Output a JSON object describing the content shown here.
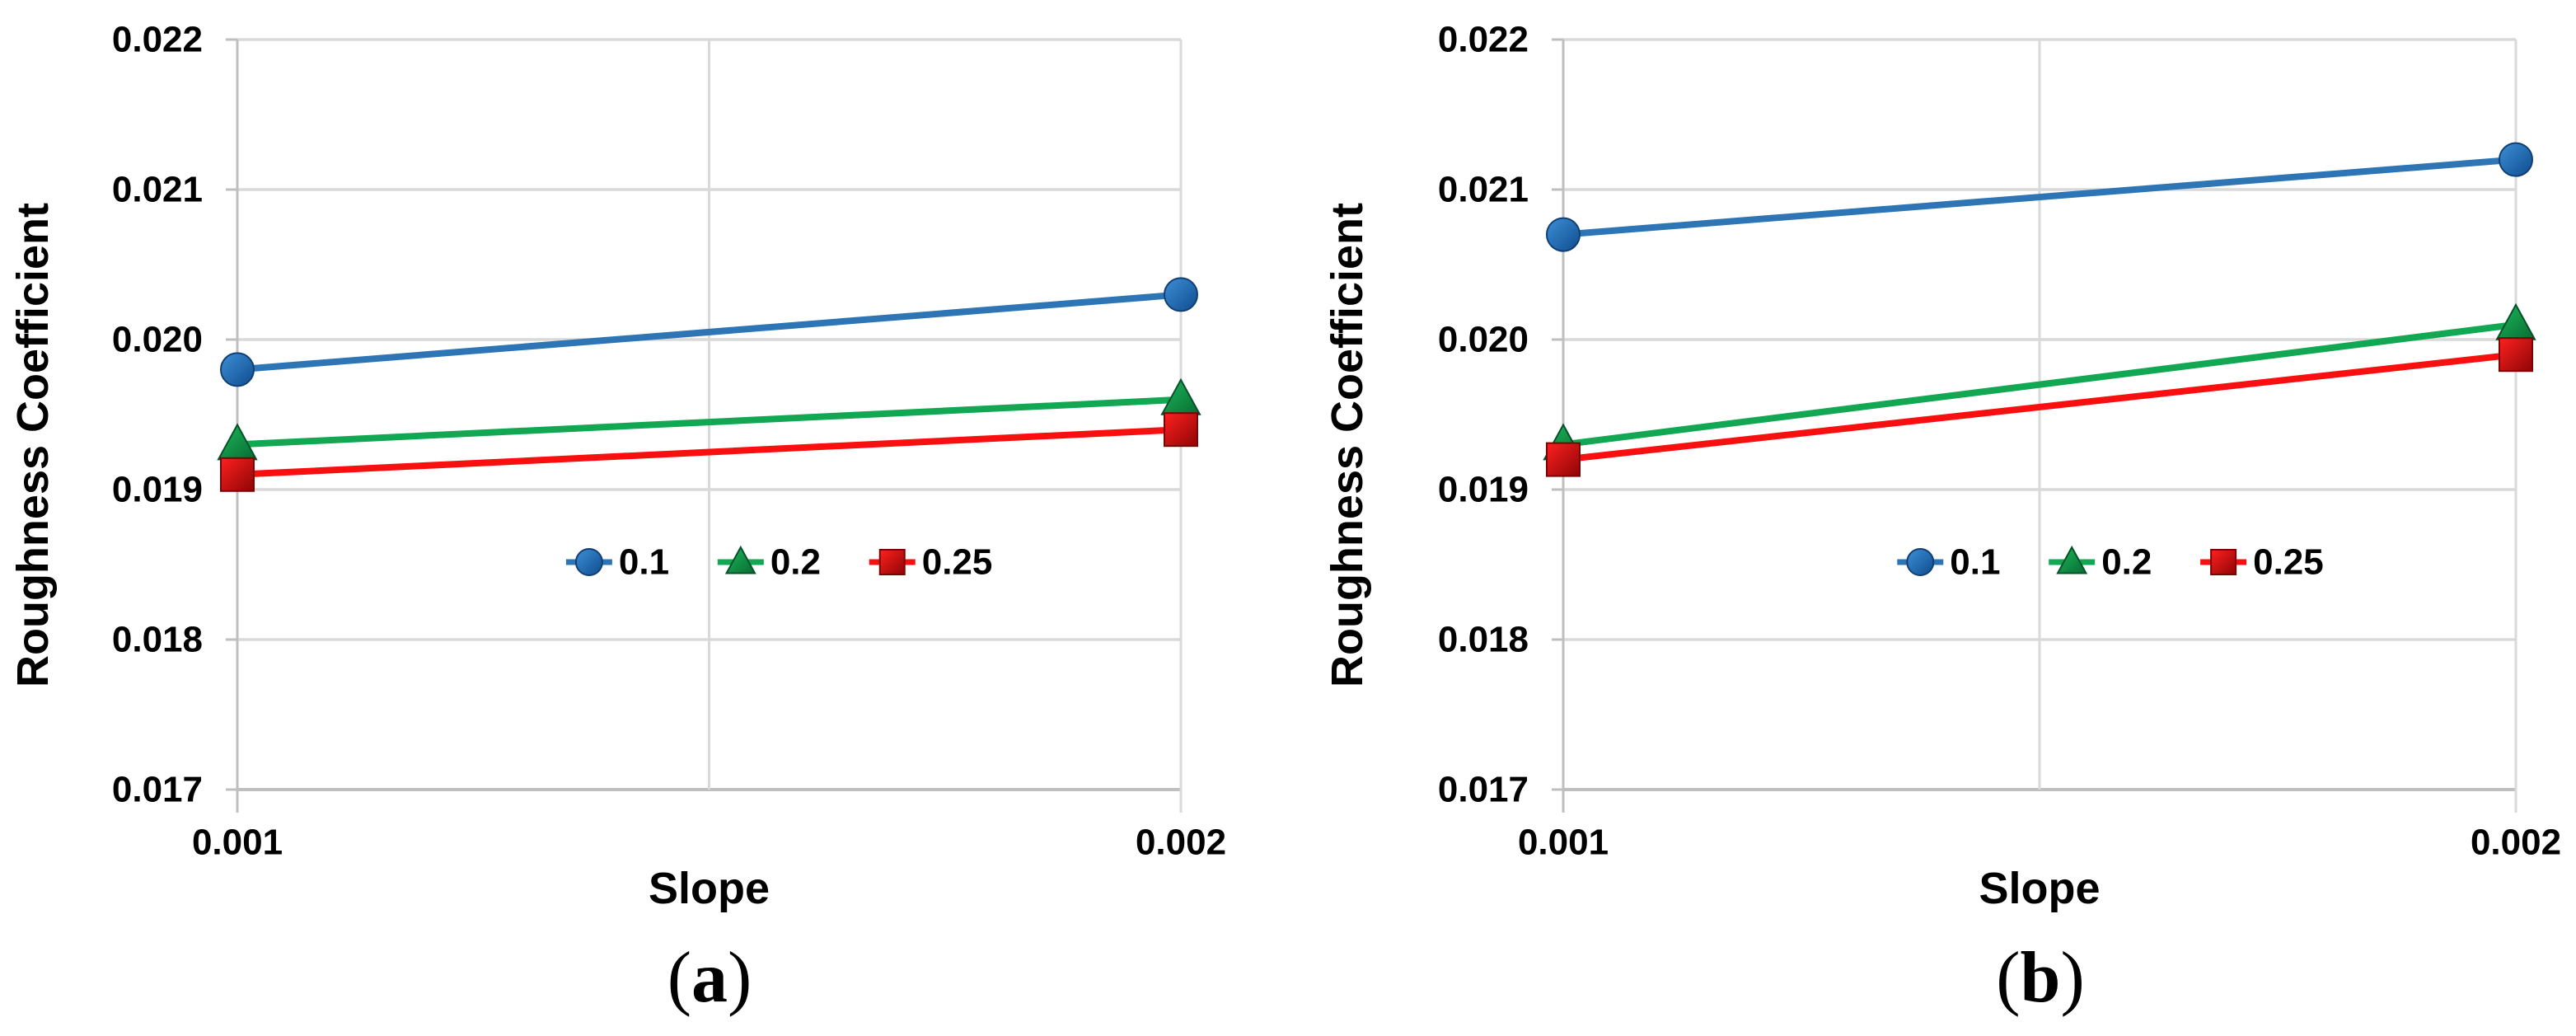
{
  "figure": {
    "background": "#FFFFFF",
    "grid_color": "#D9D9D9",
    "axis_color": "#BFBFBF",
    "text_color": "#000000"
  },
  "chart_data": [
    {
      "type": "line",
      "caption_prefix": "(",
      "caption_letter": "a",
      "caption_suffix": ")",
      "xlabel": "Slope",
      "ylabel": "Roughness Coefficient",
      "x": [
        0.001,
        0.002
      ],
      "xtick_labels": [
        "0.001",
        "0.002"
      ],
      "ytick_labels": [
        "0.017",
        "0.018",
        "0.019",
        "0.020",
        "0.021",
        "0.022"
      ],
      "ylim": [
        0.017,
        0.022
      ],
      "grid": true,
      "legend_position": "inside-lower-center",
      "series": [
        {
          "name": "0.1",
          "marker": "circle",
          "color": "#2E75B6",
          "values": [
            0.0198,
            0.0203
          ]
        },
        {
          "name": "0.2",
          "marker": "triangle",
          "color": "#12A853",
          "values": [
            0.0193,
            0.0196
          ]
        },
        {
          "name": "0.25",
          "marker": "square",
          "color": "#F80F0F",
          "values": [
            0.0191,
            0.0194
          ]
        }
      ]
    },
    {
      "type": "line",
      "caption_prefix": "(",
      "caption_letter": "b",
      "caption_suffix": ")",
      "xlabel": "Slope",
      "ylabel": "Roughness Coefficient",
      "x": [
        0.001,
        0.002
      ],
      "xtick_labels": [
        "0.001",
        "0.002"
      ],
      "ytick_labels": [
        "0.017",
        "0.018",
        "0.019",
        "0.020",
        "0.021",
        "0.022"
      ],
      "ylim": [
        0.017,
        0.022
      ],
      "grid": true,
      "legend_position": "inside-lower-center",
      "series": [
        {
          "name": "0.1",
          "marker": "circle",
          "color": "#2E75B6",
          "values": [
            0.0207,
            0.0212
          ]
        },
        {
          "name": "0.2",
          "marker": "triangle",
          "color": "#12A853",
          "values": [
            0.0193,
            0.0201
          ]
        },
        {
          "name": "0.25",
          "marker": "square",
          "color": "#F80F0F",
          "values": [
            0.0192,
            0.0199
          ]
        }
      ]
    }
  ]
}
